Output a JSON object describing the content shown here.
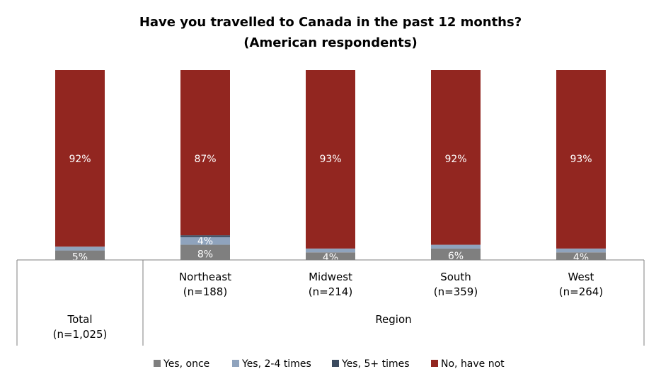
{
  "chart_data": {
    "type": "bar",
    "stacked": true,
    "title_line1": "Have you travelled to Canada in the past 12 months?",
    "title_line2": "(American respondents)",
    "categories": [
      "Total",
      "Northeast",
      "Midwest",
      "South",
      "West"
    ],
    "category_n": [
      "(n=1,025)",
      "(n=188)",
      "(n=214)",
      "(n=359)",
      "(n=264)"
    ],
    "group_label": "Region",
    "series": [
      {
        "name": "Yes, once",
        "color": "#7f7f7f",
        "values": [
          5,
          8,
          4,
          6,
          4
        ],
        "labels": [
          "5%",
          "8%",
          "4%",
          "6%",
          "4%"
        ]
      },
      {
        "name": "Yes, 2-4 times",
        "color": "#8fa3bd",
        "values": [
          2,
          4,
          2,
          2,
          2
        ],
        "labels": [
          "",
          "4%",
          "",
          "",
          ""
        ]
      },
      {
        "name": "Yes, 5+ times",
        "color": "#3b4b5f",
        "values": [
          0,
          1,
          0,
          0,
          0
        ],
        "labels": [
          "",
          "",
          "",
          "",
          ""
        ]
      },
      {
        "name": "No, have not",
        "color": "#922620",
        "values": [
          92,
          87,
          93,
          92,
          93
        ],
        "labels": [
          "92%",
          "87%",
          "93%",
          "92%",
          "93%"
        ]
      }
    ],
    "ylim": [
      0,
      100
    ],
    "legend_position": "bottom"
  }
}
